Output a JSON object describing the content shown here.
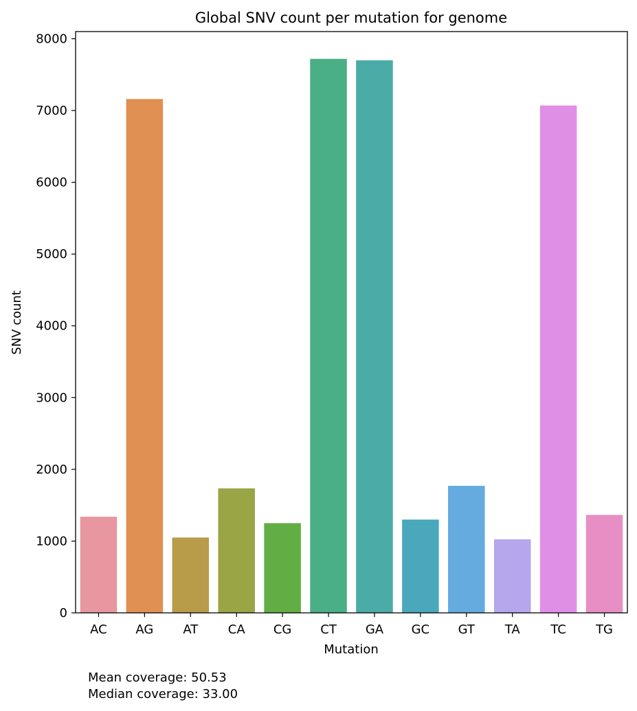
{
  "chart_data": {
    "type": "bar",
    "title": "Global SNV count per mutation for genome",
    "xlabel": "Mutation",
    "ylabel": "SNV count",
    "categories": [
      "AC",
      "AG",
      "AT",
      "CA",
      "CG",
      "CT",
      "GA",
      "GC",
      "GT",
      "TA",
      "TC",
      "TG"
    ],
    "values": [
      1340,
      7160,
      1050,
      1735,
      1250,
      7720,
      7700,
      1300,
      1770,
      1025,
      7070,
      1365
    ],
    "colors": [
      "#e8969f",
      "#e09052",
      "#b89c4a",
      "#9aa546",
      "#62ae45",
      "#4aaf86",
      "#4baba6",
      "#4aa8bd",
      "#65abe0",
      "#b6a7ec",
      "#e08fe7",
      "#e78fc5"
    ],
    "ylim": [
      0,
      8100
    ],
    "yticks": [
      0,
      1000,
      2000,
      3000,
      4000,
      5000,
      6000,
      7000,
      8000
    ],
    "grid": false,
    "legend": "none"
  },
  "notes": {
    "mean_coverage": "Mean coverage: 50.53",
    "median_coverage": "Median coverage: 33.00"
  }
}
